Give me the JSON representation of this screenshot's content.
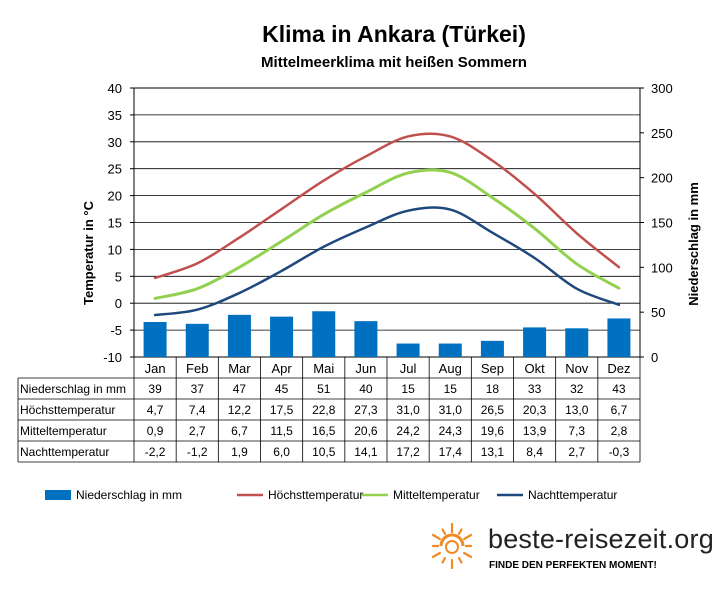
{
  "colors": {
    "precip": "#0070C0",
    "hoechst": "#C0504D",
    "mittel": "#92D050",
    "nacht": "#1F497D",
    "grid": "#7f7f7f",
    "sun": "#F08A24"
  },
  "branding": {
    "site": "beste-reisezeit.org",
    "tagline": "FINDE DEN PERFEKTEN MOMENT!"
  },
  "chart_data": {
    "type": "bar+line",
    "title": "Klima in Ankara (Türkei)",
    "subtitle": "Mittelmeerklima mit heißen Sommern",
    "ylabel_left": "Temperatur in °C",
    "ylabel_right": "Niederschlag in mm",
    "ylim_left": [
      -10,
      40
    ],
    "ylim_right": [
      0,
      300
    ],
    "yticks_left": [
      "40",
      "35",
      "30",
      "25",
      "20",
      "15",
      "10",
      "5",
      "0",
      "-5",
      "-10"
    ],
    "yticks_right": [
      "300",
      "250",
      "200",
      "150",
      "100",
      "50",
      "0"
    ],
    "grid": true,
    "legend_position": "bottom",
    "categories": [
      "Jan",
      "Feb",
      "Mar",
      "Apr",
      "Mai",
      "Jun",
      "Jul",
      "Aug",
      "Sep",
      "Okt",
      "Nov",
      "Dez"
    ],
    "series": [
      {
        "name": "Niederschlag in mm",
        "kind": "bar",
        "axis": "right",
        "values": [
          39,
          37,
          47,
          45,
          51,
          40,
          15,
          15,
          18,
          33,
          32,
          43
        ]
      },
      {
        "name": "Höchsttemperatur",
        "kind": "line",
        "axis": "left",
        "values": [
          4.7,
          7.4,
          12.2,
          17.5,
          22.8,
          27.3,
          31.0,
          31.0,
          26.5,
          20.3,
          13.0,
          6.7
        ]
      },
      {
        "name": "Mitteltemperatur",
        "kind": "line",
        "axis": "left",
        "values": [
          0.9,
          2.7,
          6.7,
          11.5,
          16.5,
          20.6,
          24.2,
          24.3,
          19.6,
          13.9,
          7.3,
          2.8
        ]
      },
      {
        "name": "Nachttemperatur",
        "kind": "line",
        "axis": "left",
        "values": [
          -2.2,
          -1.2,
          1.9,
          6.0,
          10.5,
          14.1,
          17.2,
          17.4,
          13.1,
          8.4,
          2.7,
          -0.3
        ]
      }
    ],
    "table": {
      "rows": [
        {
          "label": "Niederschlag in mm",
          "cells": [
            "39",
            "37",
            "47",
            "45",
            "51",
            "40",
            "15",
            "15",
            "18",
            "33",
            "32",
            "43"
          ]
        },
        {
          "label": "Höchsttemperatur",
          "cells": [
            "4,7",
            "7,4",
            "12,2",
            "17,5",
            "22,8",
            "27,3",
            "31,0",
            "31,0",
            "26,5",
            "20,3",
            "13,0",
            "6,7"
          ]
        },
        {
          "label": "Mitteltemperatur",
          "cells": [
            "0,9",
            "2,7",
            "6,7",
            "11,5",
            "16,5",
            "20,6",
            "24,2",
            "24,3",
            "19,6",
            "13,9",
            "7,3",
            "2,8"
          ]
        },
        {
          "label": "Nachttemperatur",
          "cells": [
            "-2,2",
            "-1,2",
            "1,9",
            "6,0",
            "10,5",
            "14,1",
            "17,2",
            "17,4",
            "13,1",
            "8,4",
            "2,7",
            "-0,3"
          ]
        }
      ]
    }
  }
}
